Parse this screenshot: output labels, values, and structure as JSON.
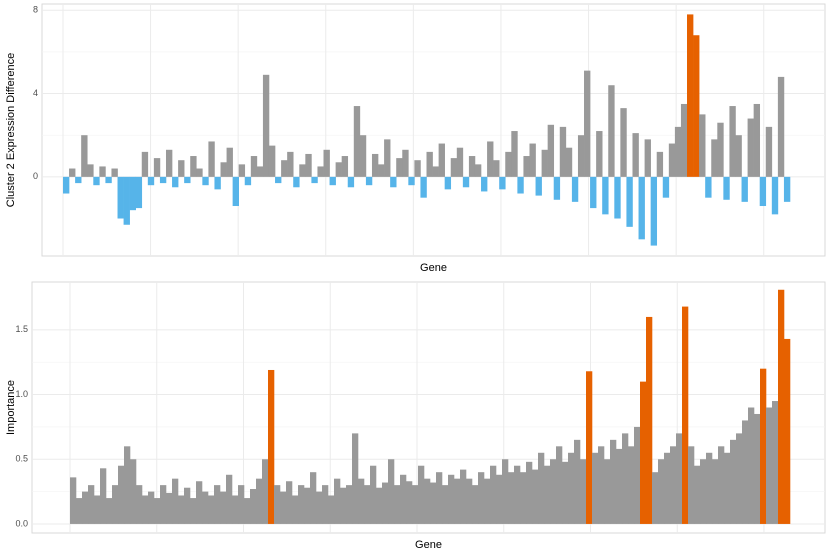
{
  "chart_data": [
    {
      "type": "bar",
      "y_label": "Cluster 2 Expression Difference",
      "x_label": "Gene",
      "color": "#999999",
      "negative_color": "#56B4E9",
      "highlight_color": "#E66100",
      "highlighted": [
        103,
        104
      ],
      "ylim": [
        -3.8,
        8.3
      ],
      "yticks": [
        0,
        4,
        8
      ],
      "grid": true,
      "values": [
        -0.8,
        0.4,
        -0.3,
        2.0,
        0.6,
        -0.4,
        0.5,
        -0.3,
        0.4,
        -2.0,
        -2.3,
        -1.6,
        -1.5,
        1.2,
        -0.4,
        0.9,
        -0.3,
        1.3,
        -0.5,
        0.8,
        -0.3,
        1.0,
        0.4,
        -0.4,
        1.7,
        -0.6,
        0.7,
        1.4,
        -1.4,
        0.6,
        -0.4,
        1.0,
        0.5,
        4.9,
        1.5,
        -0.3,
        0.8,
        1.2,
        -0.5,
        0.6,
        1.1,
        -0.3,
        0.5,
        1.3,
        -0.4,
        0.7,
        1.0,
        -0.5,
        3.4,
        2.0,
        -0.4,
        1.1,
        0.6,
        1.8,
        -0.5,
        0.9,
        1.3,
        -0.4,
        0.8,
        -1.0,
        1.2,
        0.5,
        1.6,
        -0.6,
        0.9,
        1.4,
        -0.5,
        1.0,
        0.6,
        -0.7,
        1.7,
        0.8,
        -0.6,
        1.2,
        2.2,
        -0.8,
        1.0,
        1.6,
        -0.9,
        1.3,
        2.5,
        -1.1,
        2.4,
        1.4,
        -1.2,
        2.0,
        5.1,
        -1.5,
        2.2,
        -1.8,
        4.4,
        -2.0,
        3.3,
        -2.4,
        2.1,
        -3.0,
        1.8,
        -3.3,
        1.2,
        -1.0,
        1.6,
        2.4,
        3.5,
        7.8,
        6.8,
        3.0,
        -1.0,
        1.8,
        2.6,
        -1.1,
        3.4,
        2.0,
        -1.2,
        2.8,
        3.5,
        -1.4,
        2.4,
        -1.8,
        4.8,
        -1.2
      ]
    },
    {
      "type": "bar",
      "y_label": "Importance",
      "x_label": "Gene",
      "color": "#999999",
      "negative_color": "#56B4E9",
      "highlight_color": "#E66100",
      "highlighted": [
        33,
        86,
        95,
        96,
        102,
        115,
        118,
        119
      ],
      "ylim": [
        -0.07,
        1.87
      ],
      "yticks": [
        {
          "value": 0,
          "label": "0.0"
        },
        0.5,
        {
          "value": 1,
          "label": "1.0"
        },
        1.5
      ],
      "grid": true,
      "values": [
        0.36,
        0.2,
        0.25,
        0.3,
        0.22,
        0.43,
        0.2,
        0.3,
        0.45,
        0.6,
        0.5,
        0.3,
        0.22,
        0.25,
        0.2,
        0.3,
        0.24,
        0.35,
        0.22,
        0.28,
        0.2,
        0.33,
        0.25,
        0.22,
        0.3,
        0.25,
        0.38,
        0.22,
        0.3,
        0.2,
        0.27,
        0.35,
        0.5,
        1.19,
        0.3,
        0.25,
        0.33,
        0.22,
        0.3,
        0.28,
        0.4,
        0.25,
        0.3,
        0.22,
        0.35,
        0.28,
        0.3,
        0.7,
        0.35,
        0.3,
        0.45,
        0.28,
        0.32,
        0.5,
        0.3,
        0.38,
        0.33,
        0.3,
        0.45,
        0.35,
        0.32,
        0.4,
        0.3,
        0.38,
        0.35,
        0.42,
        0.35,
        0.3,
        0.4,
        0.35,
        0.45,
        0.38,
        0.5,
        0.4,
        0.45,
        0.4,
        0.48,
        0.42,
        0.55,
        0.45,
        0.5,
        0.6,
        0.48,
        0.55,
        0.65,
        0.5,
        1.18,
        0.55,
        0.6,
        0.5,
        0.65,
        0.58,
        0.7,
        0.6,
        0.75,
        1.1,
        1.6,
        0.4,
        0.5,
        0.55,
        0.6,
        0.7,
        1.68,
        0.6,
        0.45,
        0.5,
        0.55,
        0.5,
        0.6,
        0.55,
        0.65,
        0.7,
        0.8,
        0.9,
        0.85,
        1.2,
        0.9,
        0.95,
        1.81,
        1.43
      ]
    }
  ]
}
